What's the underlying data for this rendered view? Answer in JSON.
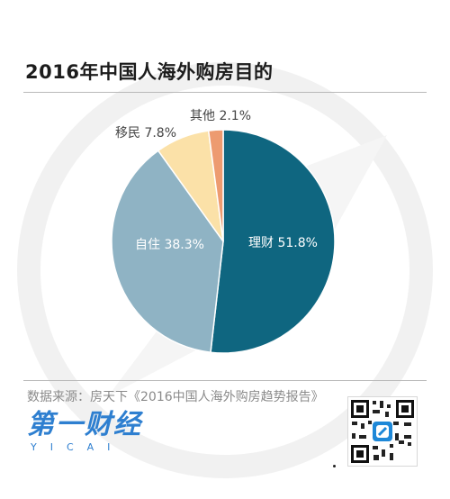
{
  "header": {
    "title": "2016年中国人海外购房目的"
  },
  "chart_data": {
    "type": "pie",
    "title": "2016年中国人海外购房目的",
    "slices": [
      {
        "label": "理财",
        "value": 51.8,
        "display": "51.8%",
        "color": "#0f6680"
      },
      {
        "label": "自住",
        "value": 38.3,
        "display": "38.3%",
        "color": "#8fb3c4"
      },
      {
        "label": "移民",
        "value": 7.8,
        "display": "7.8%",
        "color": "#fbe1a8"
      },
      {
        "label": "其他",
        "value": 2.1,
        "display": "2.1%",
        "color": "#ed9b70"
      }
    ],
    "start": "12 o'clock",
    "direction": "clockwise"
  },
  "footer": {
    "source": "数据来源：房天下《2016中国人海外购房趋势报告》",
    "logo_main": "第一财经",
    "logo_sub": "YICAI"
  }
}
